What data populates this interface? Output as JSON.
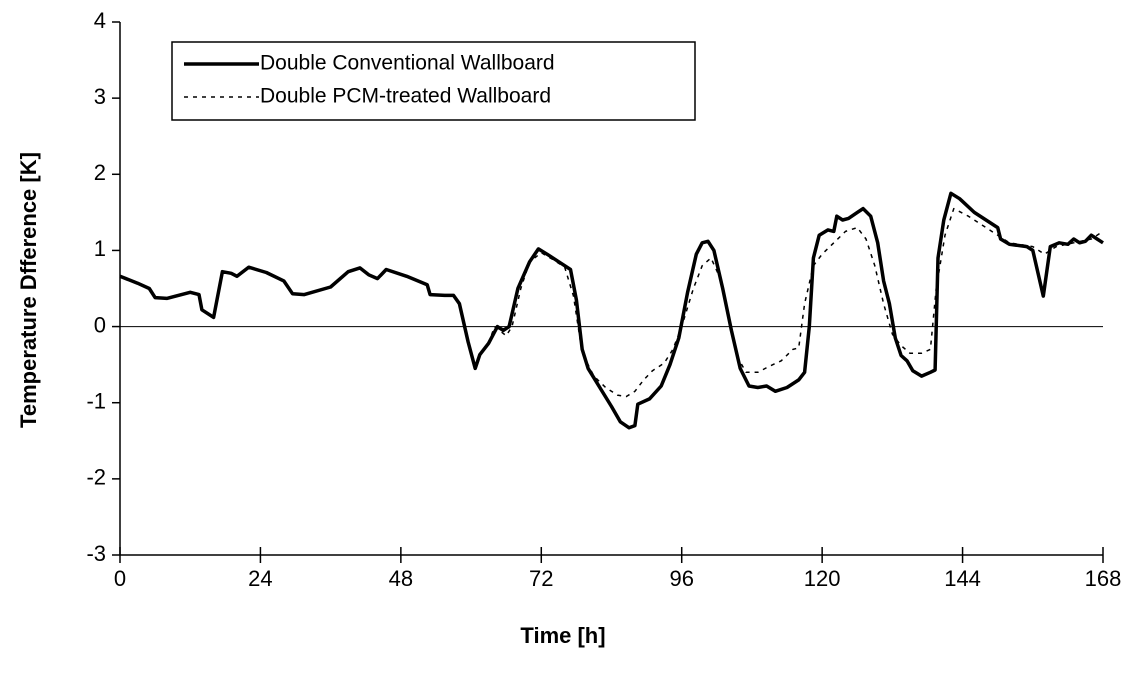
{
  "chart_data": {
    "type": "line",
    "xlabel": "Time [h]",
    "ylabel": "Temperature Dfference [K]",
    "xlim": [
      0,
      168
    ],
    "xticks": [
      0,
      24,
      48,
      72,
      96,
      120,
      144,
      168
    ],
    "ylim": [
      -3,
      4
    ],
    "yticks": [
      -3,
      -2,
      -1,
      0,
      1,
      2,
      3,
      4
    ],
    "grid": false,
    "legend": "upper left",
    "series": [
      {
        "name": "Double Conventional Wallboard",
        "color": "#000000",
        "style": "solid",
        "x": [
          0,
          3,
          5,
          6,
          8,
          12,
          13.5,
          14,
          16,
          17.5,
          19,
          20,
          22,
          25,
          28,
          29.5,
          31.5,
          36,
          39,
          41,
          42.5,
          44,
          45.5,
          49,
          52.5,
          53,
          55.5,
          57,
          58,
          59.5,
          60.7,
          61.5,
          63,
          64.5,
          65.5,
          66.5,
          68,
          70,
          71.5,
          73,
          75,
          77,
          78,
          79,
          80,
          82,
          84,
          85.5,
          87,
          88,
          88.5,
          90.5,
          92.5,
          94,
          95.5,
          97,
          98.5,
          99.5,
          100.5,
          101.5,
          103,
          104.5,
          106,
          107.5,
          109,
          110.5,
          112,
          114,
          116,
          117,
          117.8,
          118.5,
          119.5,
          121,
          122,
          122.5,
          123.5,
          124.5,
          126,
          127,
          128.3,
          129.5,
          130.5,
          131.5,
          132.5,
          133.5,
          134.5,
          135.5,
          137,
          138.5,
          139.3,
          139.8,
          140.8,
          142,
          143.5,
          146,
          148,
          150,
          150.5,
          152,
          155,
          156,
          157.8,
          159,
          160.5,
          162,
          163,
          164,
          165,
          166,
          167,
          168
        ],
        "values": [
          0.66,
          0.57,
          0.5,
          0.38,
          0.37,
          0.45,
          0.42,
          0.22,
          0.12,
          0.72,
          0.7,
          0.66,
          0.78,
          0.71,
          0.6,
          0.43,
          0.42,
          0.52,
          0.72,
          0.77,
          0.68,
          0.63,
          0.75,
          0.66,
          0.55,
          0.42,
          0.41,
          0.41,
          0.3,
          -0.2,
          -0.55,
          -0.37,
          -0.22,
          0.0,
          -0.05,
          0.0,
          0.5,
          0.85,
          1.02,
          0.95,
          0.85,
          0.75,
          0.35,
          -0.3,
          -0.55,
          -0.8,
          -1.05,
          -1.25,
          -1.33,
          -1.3,
          -1.02,
          -0.95,
          -0.78,
          -0.5,
          -0.15,
          0.45,
          0.95,
          1.1,
          1.12,
          1.0,
          0.5,
          -0.05,
          -0.55,
          -0.78,
          -0.8,
          -0.78,
          -0.85,
          -0.8,
          -0.7,
          -0.6,
          0.0,
          0.9,
          1.2,
          1.27,
          1.25,
          1.45,
          1.4,
          1.42,
          1.5,
          1.55,
          1.45,
          1.1,
          0.6,
          0.3,
          -0.15,
          -0.38,
          -0.45,
          -0.58,
          -0.65,
          -0.6,
          -0.57,
          0.9,
          1.4,
          1.75,
          1.68,
          1.5,
          1.4,
          1.3,
          1.15,
          1.08,
          1.05,
          1.0,
          0.4,
          1.05,
          1.1,
          1.08,
          1.15,
          1.1,
          1.12,
          1.2,
          1.15,
          1.1
        ]
      },
      {
        "name": "Double PCM-treated Wallboard",
        "color": "#000000",
        "style": "dashed",
        "x": [
          0,
          3,
          5,
          6,
          8,
          12,
          13.5,
          14,
          16,
          17.5,
          19,
          20,
          22,
          25,
          28,
          29.5,
          31.5,
          36,
          39,
          41,
          42.5,
          44,
          45.5,
          49,
          52.5,
          53,
          55.5,
          57,
          58,
          59.5,
          60.7,
          61.5,
          63,
          64,
          66,
          67,
          68.5,
          70,
          72,
          74,
          76,
          77.5,
          79,
          81,
          83,
          85,
          86.5,
          88,
          89.5,
          91,
          93,
          94.5,
          96,
          98,
          99.5,
          101,
          102.5,
          104,
          105.5,
          107,
          109,
          111,
          113,
          115,
          116,
          117,
          118.5,
          120,
          122,
          124,
          126,
          127.5,
          129,
          130.5,
          132,
          133.5,
          135,
          137,
          138.5,
          139.5,
          141,
          142.5,
          145,
          148,
          150,
          152,
          156,
          157,
          158,
          160,
          163,
          166,
          168
        ],
        "values": [
          0.66,
          0.57,
          0.5,
          0.38,
          0.37,
          0.45,
          0.42,
          0.22,
          0.12,
          0.72,
          0.7,
          0.66,
          0.78,
          0.71,
          0.6,
          0.43,
          0.42,
          0.52,
          0.72,
          0.77,
          0.68,
          0.63,
          0.75,
          0.66,
          0.55,
          0.42,
          0.41,
          0.41,
          0.3,
          -0.2,
          -0.5,
          -0.37,
          -0.22,
          0.0,
          -0.12,
          0.0,
          0.5,
          0.85,
          0.97,
          0.88,
          0.78,
          0.4,
          -0.35,
          -0.65,
          -0.8,
          -0.9,
          -0.92,
          -0.85,
          -0.7,
          -0.58,
          -0.48,
          -0.3,
          0.0,
          0.5,
          0.8,
          0.9,
          0.65,
          0.1,
          -0.4,
          -0.6,
          -0.6,
          -0.52,
          -0.45,
          -0.3,
          -0.28,
          0.3,
          0.8,
          0.95,
          1.1,
          1.25,
          1.3,
          1.15,
          0.8,
          0.3,
          -0.1,
          -0.25,
          -0.35,
          -0.35,
          -0.3,
          0.5,
          1.2,
          1.55,
          1.45,
          1.3,
          1.2,
          1.1,
          1.05,
          1.0,
          0.95,
          1.05,
          1.1,
          1.15,
          1.25
        ]
      }
    ]
  }
}
